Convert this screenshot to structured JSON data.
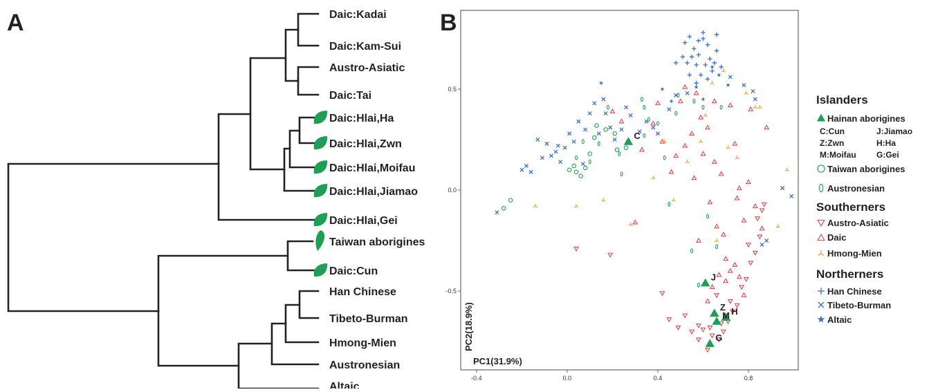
{
  "panels": {
    "a": "A",
    "b": "B"
  },
  "tree": {
    "leaves": [
      {
        "label": "Daic:Kadai",
        "leaf_icon": false
      },
      {
        "label": "Daic:Kam-Sui",
        "leaf_icon": false
      },
      {
        "label": "Austro-Asiatic",
        "leaf_icon": false
      },
      {
        "label": "Daic:Tai",
        "leaf_icon": false
      },
      {
        "label": "Daic:Hlai,Ha",
        "leaf_icon": true
      },
      {
        "label": "Daic:Hlai,Zwn",
        "leaf_icon": true
      },
      {
        "label": "Daic:Hlai,Moifau",
        "leaf_icon": true
      },
      {
        "label": "Daic:Hlai,Jiamao",
        "leaf_icon": true
      },
      {
        "label": "Daic:Hlai,Gei",
        "leaf_icon": true
      },
      {
        "label": "Taiwan aborigines",
        "leaf_icon": true
      },
      {
        "label": "Daic:Cun",
        "leaf_icon": true
      },
      {
        "label": "Han Chinese",
        "leaf_icon": false
      },
      {
        "label": "Tibeto-Burman",
        "leaf_icon": false
      },
      {
        "label": "Hmong-Mien",
        "leaf_icon": false
      },
      {
        "label": "Austronesian",
        "leaf_icon": false
      },
      {
        "label": "Altaic",
        "leaf_icon": false
      }
    ]
  },
  "chart_data": {
    "type": "scatter",
    "xlabel": "PC1(31.9%)",
    "ylabel": "PC2(18.9%)",
    "xlim": [
      -0.47,
      1.02
    ],
    "ylim": [
      -0.89,
      0.89
    ],
    "xticks": [
      "-0.4",
      "0.0",
      "0.4",
      "0.8"
    ],
    "yticks": [
      "0.5",
      "0.0",
      "-0.5"
    ],
    "grid": false,
    "colors": {
      "green": "#1f9e55",
      "red": "#e0454d",
      "blue": "#3a6fc4",
      "orange": "#f0a040"
    },
    "series": [
      {
        "name": "Hainan aborigines",
        "marker": "triangle",
        "color": "#1f9e55",
        "points": [
          [
            0.27,
            0.24
          ],
          [
            0.61,
            -0.46
          ],
          [
            0.65,
            -0.61
          ],
          [
            0.7,
            -0.63
          ],
          [
            0.66,
            -0.65
          ],
          [
            0.63,
            -0.76
          ]
        ],
        "point_labels": [
          "C",
          "J",
          "Z",
          "H",
          "M",
          "G"
        ]
      },
      {
        "name": "Taiwan aborigines",
        "marker": "circle",
        "color": "#1f9e55",
        "points": [
          [
            -0.25,
            -0.05
          ],
          [
            -0.28,
            -0.09
          ],
          [
            0.01,
            0.1
          ],
          [
            0.03,
            0.12
          ],
          [
            0.04,
            0.09
          ],
          [
            0.06,
            0.07
          ],
          [
            0.08,
            0.11
          ],
          [
            0.1,
            0.18
          ],
          [
            0.12,
            0.26
          ],
          [
            0.13,
            0.32
          ],
          [
            0.17,
            0.3
          ],
          [
            0.21,
            0.28
          ],
          [
            0.22,
            0.2
          ],
          [
            0.26,
            0.21
          ]
        ]
      },
      {
        "name": "Austronesian",
        "marker": "ellipse",
        "color": "#1f9e55",
        "points": [
          [
            0.04,
            0.16
          ],
          [
            0.07,
            0.24
          ],
          [
            0.1,
            0.14
          ],
          [
            0.14,
            0.23
          ],
          [
            0.18,
            0.41
          ],
          [
            0.23,
            0.18
          ],
          [
            0.33,
            0.45
          ],
          [
            0.34,
            0.41
          ],
          [
            0.36,
            0.35
          ],
          [
            0.4,
            0.33
          ],
          [
            0.43,
            0.16
          ],
          [
            0.45,
            -0.07
          ],
          [
            0.48,
            0.38
          ],
          [
            0.49,
            0.47
          ],
          [
            0.56,
            0.44
          ],
          [
            0.55,
            -0.3
          ],
          [
            0.58,
            -0.47
          ],
          [
            0.6,
            0.41
          ],
          [
            0.62,
            -0.13
          ],
          [
            0.66,
            -0.28
          ],
          [
            0.68,
            0.41
          ],
          [
            0.34,
            0.27
          ],
          [
            0.24,
            0.08
          ]
        ]
      },
      {
        "name": "Austro-Asiatic",
        "marker": "triangle-down",
        "color": "#e0454d",
        "points": [
          [
            0.04,
            -0.29
          ],
          [
            0.19,
            -0.32
          ],
          [
            0.42,
            -0.51
          ],
          [
            0.45,
            -0.64
          ],
          [
            0.49,
            -0.68
          ],
          [
            0.52,
            -0.62
          ],
          [
            0.55,
            -0.7
          ],
          [
            0.58,
            -0.74
          ],
          [
            0.6,
            -0.69
          ],
          [
            0.62,
            -0.79
          ],
          [
            0.63,
            -0.68
          ],
          [
            0.67,
            -0.74
          ],
          [
            0.69,
            -0.7
          ],
          [
            0.71,
            -0.65
          ],
          [
            0.73,
            -0.6
          ],
          [
            0.75,
            -0.57
          ],
          [
            0.77,
            -0.48
          ],
          [
            0.79,
            -0.44
          ],
          [
            0.81,
            -0.36
          ],
          [
            0.83,
            -0.31
          ],
          [
            0.85,
            -0.23
          ],
          [
            0.86,
            -0.1
          ],
          [
            0.87,
            -0.07
          ],
          [
            0.84,
            -0.14
          ],
          [
            0.8,
            -0.27
          ],
          [
            0.68,
            -0.66
          ],
          [
            0.64,
            -0.72
          ],
          [
            0.58,
            -0.67
          ],
          [
            0.66,
            -0.52
          ],
          [
            0.72,
            -0.55
          ]
        ]
      },
      {
        "name": "Daic",
        "marker": "triangle",
        "color": "#e0454d",
        "points": [
          [
            0.2,
            0.39
          ],
          [
            0.24,
            0.34
          ],
          [
            0.3,
            -0.16
          ],
          [
            0.33,
            0.2
          ],
          [
            0.38,
            0.33
          ],
          [
            0.4,
            0.43
          ],
          [
            0.42,
            0.24
          ],
          [
            0.46,
            0.09
          ],
          [
            0.48,
            0.17
          ],
          [
            0.5,
            0.44
          ],
          [
            0.52,
            0.51
          ],
          [
            0.55,
            0.28
          ],
          [
            0.57,
            0.48
          ],
          [
            0.59,
            0.36
          ],
          [
            0.6,
            0.18
          ],
          [
            0.62,
            0.31
          ],
          [
            0.63,
            -0.06
          ],
          [
            0.65,
            0.44
          ],
          [
            0.66,
            -0.18
          ],
          [
            0.68,
            0.08
          ],
          [
            0.69,
            -0.22
          ],
          [
            0.7,
            -0.34
          ],
          [
            0.72,
            0.42
          ],
          [
            0.74,
            0.23
          ],
          [
            0.75,
            -0.04
          ],
          [
            0.76,
            0.01
          ],
          [
            0.78,
            -0.15
          ],
          [
            0.8,
            0.04
          ],
          [
            0.81,
            0.4
          ],
          [
            0.83,
            -0.08
          ],
          [
            0.86,
            -0.19
          ],
          [
            0.88,
            0.31
          ],
          [
            0.7,
            -0.45
          ],
          [
            0.72,
            -0.4
          ],
          [
            0.74,
            -0.37
          ],
          [
            0.76,
            -0.43
          ],
          [
            0.78,
            -0.52
          ],
          [
            0.62,
            -0.55
          ],
          [
            0.64,
            -0.48
          ],
          [
            0.67,
            -0.42
          ],
          [
            0.52,
            0.22
          ],
          [
            0.56,
            0.06
          ],
          [
            0.58,
            -0.25
          ],
          [
            0.65,
            0.14
          ]
        ]
      },
      {
        "name": "Hmong-Mien",
        "marker": "tri-star",
        "color": "#f0a040",
        "points": [
          [
            -0.14,
            -0.08
          ],
          [
            0.04,
            -0.08
          ],
          [
            0.16,
            -0.05
          ],
          [
            0.28,
            -0.17
          ],
          [
            0.38,
            0.06
          ],
          [
            0.43,
            0.24
          ],
          [
            0.47,
            -0.05
          ],
          [
            0.59,
            0.24
          ],
          [
            0.66,
            -0.25
          ],
          [
            0.75,
            0.16
          ],
          [
            0.79,
            0.48
          ],
          [
            0.83,
            0.41
          ],
          [
            0.85,
            0.41
          ],
          [
            0.97,
            0.1
          ],
          [
            0.93,
            -0.18
          ],
          [
            0.61,
            0.37
          ],
          [
            0.53,
            0.14
          ],
          [
            0.71,
            0.21
          ],
          [
            0.69,
            0.59
          ],
          [
            0.64,
            0.53
          ]
        ]
      },
      {
        "name": "Han Chinese",
        "marker": "plus",
        "color": "#3a6fc4",
        "points": [
          [
            0.52,
            0.73
          ],
          [
            0.54,
            0.76
          ],
          [
            0.56,
            0.7
          ],
          [
            0.58,
            0.67
          ],
          [
            0.6,
            0.75
          ],
          [
            0.62,
            0.72
          ],
          [
            0.63,
            0.65
          ],
          [
            0.65,
            0.63
          ],
          [
            0.66,
            0.69
          ],
          [
            0.64,
            0.59
          ],
          [
            0.61,
            0.62
          ],
          [
            0.59,
            0.57
          ],
          [
            0.57,
            0.62
          ],
          [
            0.55,
            0.66
          ],
          [
            0.53,
            0.63
          ],
          [
            0.51,
            0.66
          ],
          [
            0.68,
            0.61
          ],
          [
            0.62,
            0.55
          ],
          [
            0.6,
            0.78
          ],
          [
            0.58,
            0.74
          ],
          [
            0.57,
            0.53
          ],
          [
            0.54,
            0.57
          ],
          [
            0.66,
            0.77
          ],
          [
            0.48,
            0.63
          ]
        ]
      },
      {
        "name": "Tibeto-Burman",
        "marker": "cross",
        "color": "#3a6fc4",
        "points": [
          [
            -0.31,
            -0.11
          ],
          [
            -0.2,
            0.1
          ],
          [
            -0.16,
            0.09
          ],
          [
            -0.13,
            0.25
          ],
          [
            -0.11,
            0.16
          ],
          [
            -0.09,
            0.23
          ],
          [
            -0.07,
            0.17
          ],
          [
            -0.05,
            0.19
          ],
          [
            -0.04,
            0.22
          ],
          [
            -0.03,
            0.14
          ],
          [
            -0.01,
            0.21
          ],
          [
            0.01,
            0.28
          ],
          [
            0.03,
            0.24
          ],
          [
            0.05,
            0.34
          ],
          [
            0.08,
            0.3
          ],
          [
            0.1,
            0.38
          ],
          [
            0.12,
            0.43
          ],
          [
            0.14,
            0.28
          ],
          [
            0.16,
            0.45
          ],
          [
            0.17,
            0.38
          ],
          [
            0.19,
            0.31
          ],
          [
            0.21,
            0.25
          ],
          [
            0.24,
            0.3
          ],
          [
            0.26,
            0.41
          ],
          [
            0.28,
            0.37
          ],
          [
            0.32,
            0.29
          ],
          [
            0.35,
            0.34
          ],
          [
            0.38,
            0.31
          ],
          [
            0.4,
            0.28
          ],
          [
            0.45,
            0.4
          ],
          [
            0.48,
            0.47
          ],
          [
            0.53,
            0.48
          ],
          [
            0.72,
            0.56
          ],
          [
            0.78,
            0.52
          ],
          [
            0.82,
            0.49
          ],
          [
            0.95,
            0.01
          ],
          [
            0.99,
            -0.03
          ],
          [
            0.83,
            0.45
          ],
          [
            0.86,
            -0.27
          ],
          [
            0.88,
            -0.25
          ],
          [
            -0.18,
            0.12
          ],
          [
            0.07,
            0.13
          ]
        ]
      },
      {
        "name": "Altaic",
        "marker": "star",
        "color": "#3a6fc4",
        "points": [
          [
            0.15,
            0.53
          ],
          [
            0.42,
            0.5
          ],
          [
            0.46,
            0.44
          ],
          [
            0.57,
            0.51
          ],
          [
            0.6,
            0.45
          ],
          [
            0.64,
            0.61
          ],
          [
            0.67,
            0.57
          ],
          [
            0.71,
            0.52
          ]
        ]
      }
    ]
  },
  "legend": {
    "group_islanders": "Islanders",
    "hainan": "Hainan aborigines",
    "codes": [
      "C:Cun",
      "J:Jiamao",
      "Z:Zwn",
      "H:Ha",
      "M:Moifau",
      "G:Gei"
    ],
    "taiwan": "Taiwan aborigines",
    "austronesian": "Austronesian",
    "group_southerners": "Southerners",
    "austro_asiatic": "Austro-Asiatic",
    "daic": "Daic",
    "hmong_mien": "Hmong-Mien",
    "group_northerners": "Northerners",
    "han": "Han Chinese",
    "tibeto_burman": "Tibeto-Burman",
    "altaic": "Altaic"
  }
}
